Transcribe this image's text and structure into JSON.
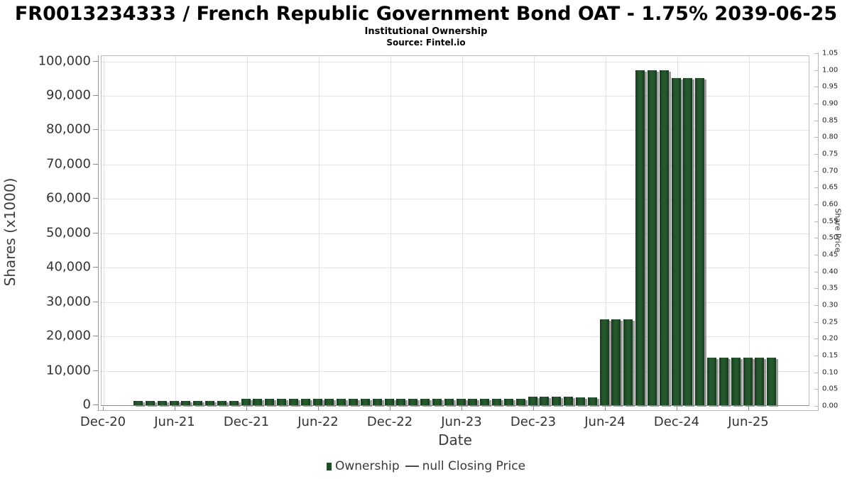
{
  "header": {
    "title": "FR0013234333 / French Republic Government Bond OAT - 1.75% 2039-06-25",
    "subtitle": "Institutional Ownership",
    "source": "Source: Fintel.io"
  },
  "axes": {
    "left": {
      "label": "Shares (x1000)",
      "ticks": [
        "0",
        "10,000",
        "20,000",
        "30,000",
        "40,000",
        "50,000",
        "60,000",
        "70,000",
        "80,000",
        "90,000",
        "100,000"
      ]
    },
    "right": {
      "label": "Share Price",
      "ticks": [
        "0.00",
        "0.05",
        "0.10",
        "0.15",
        "0.20",
        "0.25",
        "0.30",
        "0.35",
        "0.40",
        "0.45",
        "0.50",
        "0.55",
        "0.60",
        "0.65",
        "0.70",
        "0.75",
        "0.80",
        "0.85",
        "0.90",
        "0.95",
        "1.00",
        "1.05"
      ]
    },
    "x": {
      "label": "Date",
      "ticks": [
        "Dec-20",
        "Jun-21",
        "Dec-21",
        "Jun-22",
        "Dec-22",
        "Jun-23",
        "Dec-23",
        "Jun-24",
        "Dec-24",
        "Jun-25"
      ]
    }
  },
  "legend": {
    "ownership_label": "Ownership",
    "price_dash": "—",
    "price_label": "null Closing Price"
  },
  "colors": {
    "bar_center": "#26582e",
    "bar_edge": "#16391e",
    "bar_shadow": "#9e9e9e",
    "grid": "#e2e2e2",
    "legend_green": "#1e4d28"
  },
  "chart_data": {
    "type": "bar",
    "title": "FR0013234333 / French Republic Government Bond OAT - 1.75% 2039-06-25",
    "subtitle": "Institutional Ownership",
    "source": "Source: Fintel.io",
    "xlabel": "Date",
    "ylabel": "Shares (x1000)",
    "y2label": "Share Price",
    "ylim": [
      0,
      100000
    ],
    "y2lim": [
      0.0,
      1.05
    ],
    "grid": true,
    "legend_position": "bottom",
    "series_name": "Ownership",
    "secondary_series": {
      "name": "null Closing Price",
      "type": "line",
      "values": null
    },
    "categories": [
      "Mar-21",
      "Apr-21",
      "May-21",
      "Jun-21",
      "Jul-21",
      "Aug-21",
      "Sep-21",
      "Oct-21",
      "Nov-21",
      "Dec-21",
      "Jan-22",
      "Feb-22",
      "Mar-22",
      "Apr-22",
      "May-22",
      "Jun-22",
      "Jul-22",
      "Aug-22",
      "Sep-22",
      "Oct-22",
      "Nov-22",
      "Dec-22",
      "Jan-23",
      "Feb-23",
      "Mar-23",
      "Apr-23",
      "May-23",
      "Jun-23",
      "Jul-23",
      "Aug-23",
      "Sep-23",
      "Oct-23",
      "Nov-23",
      "Dec-23",
      "Jan-24",
      "Feb-24",
      "Mar-24",
      "Apr-24",
      "May-24",
      "Jun-24",
      "Jul-24",
      "Aug-24",
      "Sep-24",
      "Oct-24",
      "Nov-24",
      "Dec-24",
      "Jan-25",
      "Feb-25",
      "Mar-25",
      "Apr-25",
      "May-25",
      "Jun-25",
      "Jul-25",
      "Aug-25"
    ],
    "values": [
      1300,
      1300,
      1300,
      1300,
      1300,
      1300,
      1300,
      1300,
      1300,
      1900,
      1900,
      1900,
      1900,
      1900,
      1900,
      1900,
      1900,
      1900,
      1900,
      1900,
      1900,
      1900,
      1900,
      1900,
      1900,
      1900,
      1900,
      1900,
      1900,
      1900,
      1900,
      1900,
      1900,
      2400,
      2400,
      2400,
      2400,
      2200,
      2200,
      24900,
      24900,
      24900,
      97400,
      97400,
      97400,
      95100,
      95100,
      95100,
      13800,
      13800,
      13800,
      13800,
      13800,
      13800
    ]
  }
}
